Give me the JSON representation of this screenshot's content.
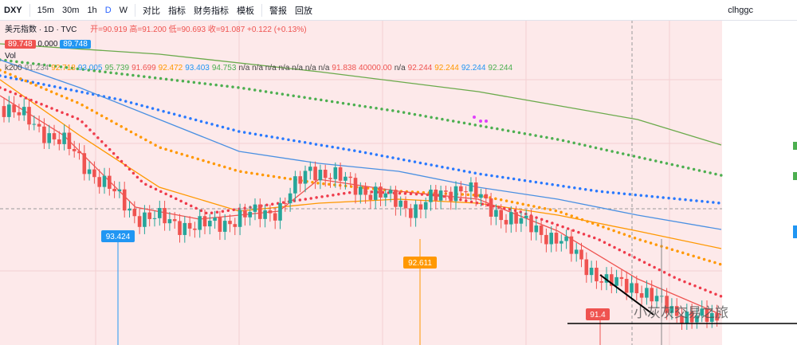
{
  "toolbar": {
    "symbol": "DXY",
    "intervals": [
      "15m",
      "30m",
      "1h",
      "D",
      "W"
    ],
    "buttons": [
      "对比",
      "指标",
      "财务指标",
      "模板",
      "警报",
      "回放"
    ],
    "user": "clhggc"
  },
  "legend": {
    "title": "美元指数 · 1D · TVC",
    "ohlc": [
      "开=90.919",
      "高=91.200",
      "低=90.693",
      "收=91.087"
    ],
    "change": "+0.122 (+0.13%)",
    "price_tags": [
      "89.748",
      "0.000",
      "89.748"
    ],
    "volume": "Vol",
    "indicator": [
      {
        "text": "k200",
        "color": "#444444"
      },
      {
        "text": "91.234",
        "color": "#888888"
      },
      {
        "text": "92.718",
        "color": "#ff9800"
      },
      {
        "text": "93.005",
        "color": "#2196f3"
      },
      {
        "text": "95.739",
        "color": "#4caf50"
      },
      {
        "text": "91.699",
        "color": "#ef5350"
      },
      {
        "text": "92.472",
        "color": "#ff9800"
      },
      {
        "text": "93.403",
        "color": "#2196f3"
      },
      {
        "text": "94.753",
        "color": "#4caf50"
      },
      {
        "text": "n/a n/a n/a n/a n/a n/a n/a",
        "color": "#444444"
      },
      {
        "text": "91.838",
        "color": "#ef5350"
      },
      {
        "text": "40000.00",
        "color": "#ef5350"
      },
      {
        "text": "n/a",
        "color": "#444444"
      },
      {
        "text": "92.244",
        "color": "#ef5350"
      },
      {
        "text": "92.244",
        "color": "#ff9800"
      },
      {
        "text": "92.244",
        "color": "#2196f3"
      },
      {
        "text": "92.244",
        "color": "#4caf50"
      }
    ]
  },
  "chart": {
    "labels": [
      "93.424",
      "92.611",
      "91.4"
    ],
    "watermark": "小灰灰交易之旅"
  }
}
